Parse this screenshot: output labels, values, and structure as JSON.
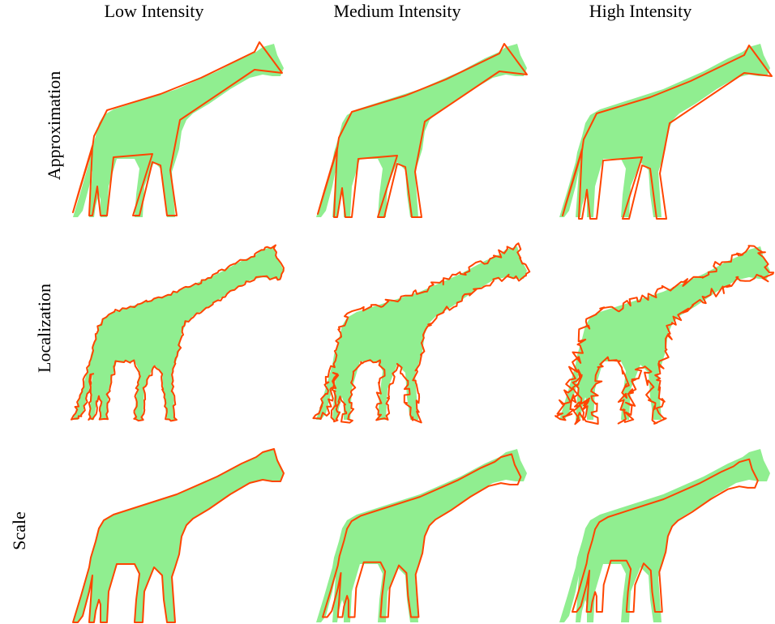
{
  "columns": [
    "Low Intensity",
    "Medium Intensity",
    "High Intensity"
  ],
  "rows": [
    "Approximation",
    "Localization",
    "Scale"
  ],
  "colors": {
    "mask_fill": "#90ee90",
    "contour_stroke": "#ff4500"
  },
  "cells": [
    {
      "row": "Approximation",
      "column": "Low Intensity",
      "contour_style": "polygon",
      "intensity": "low"
    },
    {
      "row": "Approximation",
      "column": "Medium Intensity",
      "contour_style": "polygon",
      "intensity": "medium"
    },
    {
      "row": "Approximation",
      "column": "High Intensity",
      "contour_style": "polygon",
      "intensity": "high"
    },
    {
      "row": "Localization",
      "column": "Low Intensity",
      "contour_style": "jagged",
      "intensity": "low"
    },
    {
      "row": "Localization",
      "column": "Medium Intensity",
      "contour_style": "jagged",
      "intensity": "medium"
    },
    {
      "row": "Localization",
      "column": "High Intensity",
      "contour_style": "jagged",
      "intensity": "high"
    },
    {
      "row": "Scale",
      "column": "Low Intensity",
      "contour_style": "shrunk",
      "intensity": "low"
    },
    {
      "row": "Scale",
      "column": "Medium Intensity",
      "contour_style": "shrunk",
      "intensity": "medium"
    },
    {
      "row": "Scale",
      "column": "High Intensity",
      "contour_style": "shrunk",
      "intensity": "high"
    }
  ]
}
